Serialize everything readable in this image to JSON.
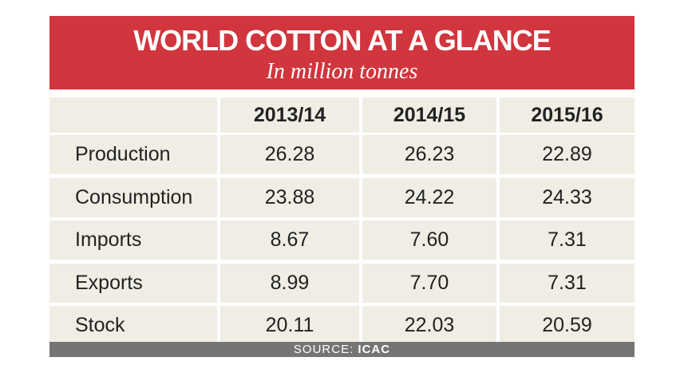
{
  "header": {
    "title": "WORLD COTTON AT A GLANCE",
    "subtitle": "In million tonnes"
  },
  "table": {
    "columns": [
      "2013/14",
      "2014/15",
      "2015/16"
    ],
    "rows": [
      [
        "Production",
        "26.28",
        "26.23",
        "22.89"
      ],
      [
        "Consumption",
        "23.88",
        "24.22",
        "24.33"
      ],
      [
        "Imports",
        "8.67",
        "7.60",
        "7.31"
      ],
      [
        "Exports",
        "8.99",
        "7.70",
        "7.31"
      ],
      [
        "Stock",
        "20.11",
        "22.03",
        "20.59"
      ]
    ]
  },
  "source": {
    "label": "SOURCE:",
    "name": "ICAC"
  }
}
